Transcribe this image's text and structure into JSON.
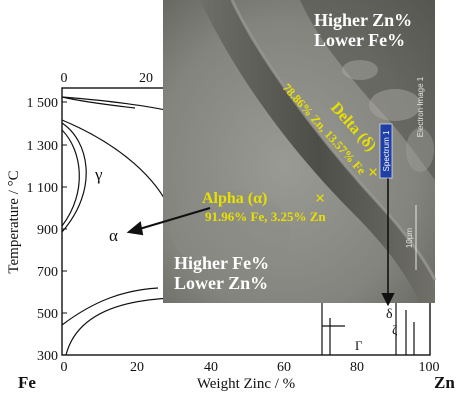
{
  "phase_diagram": {
    "element_left": "Fe",
    "element_right": "Zn",
    "y_axis_label": "Temperature / °C",
    "x_axis_label": "Weight Zinc / %",
    "y_ticks": [
      "1 500",
      "1 300",
      "1 100",
      "900",
      "700",
      "500",
      "300"
    ],
    "x_ticks_bottom": [
      "0",
      "20",
      "40",
      "60",
      "80",
      "100"
    ],
    "x_ticks_top": [
      "0",
      "20"
    ],
    "phase_gamma": "γ",
    "phase_alpha": "α",
    "phase_delta_small": "δ",
    "phase_zeta_small": "ζ",
    "phase_gamma_small": "Γ"
  },
  "micrograph": {
    "top_note_line1": "Higher Zn%",
    "top_note_line2": "Lower Fe%",
    "bottom_note_line1": "Higher Fe%",
    "bottom_note_line2": "Lower Zn%",
    "alpha_label": "Alpha (α)",
    "alpha_composition": "91.96% Fe, 3.25% Zn",
    "delta_label": "Delta (δ)",
    "delta_composition": "78.86% Zn, 13.57% Fe",
    "marker_symbol": "×",
    "spectrum_label": "Spectrum 1",
    "electron_image_label": "Electron Image 1",
    "scale_bar_label": "10µm"
  },
  "colors": {
    "annotation_yellow": "#e8e000",
    "spectrum_box": "#1f3fa6"
  }
}
